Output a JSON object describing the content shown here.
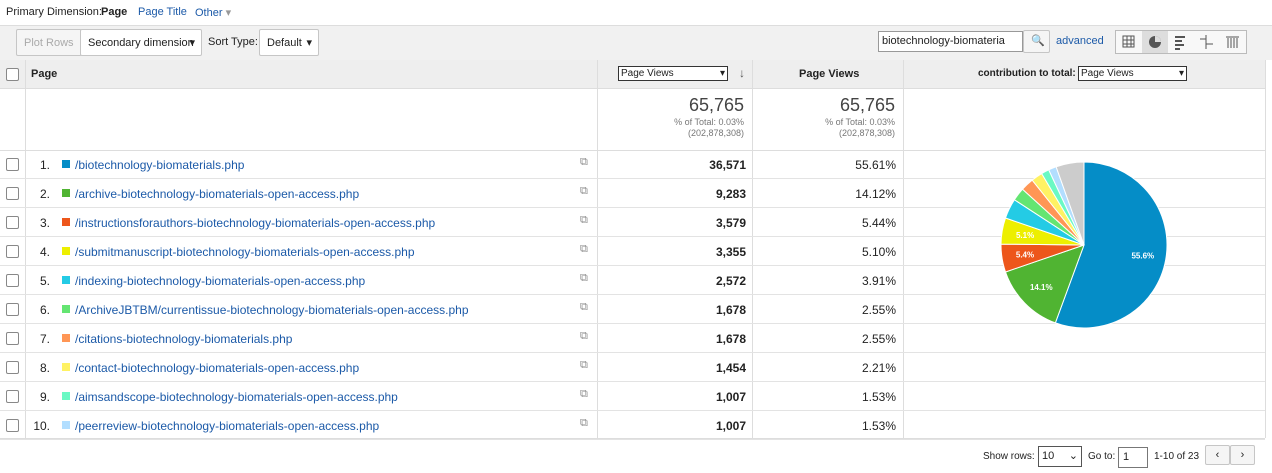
{
  "primary_dimension": {
    "label": "Primary Dimension:",
    "options": [
      "Page",
      "Page Title",
      "Other"
    ]
  },
  "toolbar": {
    "plot_rows": "Plot Rows",
    "secondary": "Secondary dimension",
    "sort_label": "Sort Type:",
    "sort_value": "Default",
    "search": "biotechnology-biomateria",
    "advanced": "advanced"
  },
  "table": {
    "headers": {
      "page": "Page",
      "metric_select": "Page Views",
      "metric": "Page Views",
      "contribution_label": "contribution to total:",
      "contribution_select": "Page Views"
    },
    "totals": [
      {
        "value": "65,765",
        "percent": "% of Total: 0.03%",
        "total": "(202,878,308)"
      },
      {
        "value": "65,765",
        "percent": "% of Total: 0.03%",
        "total": "(202,878,308)"
      }
    ],
    "rows": [
      {
        "rank": "1.",
        "page": "/biotechnology-biomaterials.php",
        "views": "36,571",
        "contribution": "55.61%"
      },
      {
        "rank": "2.",
        "page": "/archive-biotechnology-biomaterials-open-access.php",
        "views": "9,283",
        "contribution": "14.12%"
      },
      {
        "rank": "3.",
        "page": "/instructionsforauthors-biotechnology-biomaterials-open-access.php",
        "views": "3,579",
        "contribution": "5.44%"
      },
      {
        "rank": "4.",
        "page": "/submitmanuscript-biotechnology-biomaterials-open-access.php",
        "views": "3,355",
        "contribution": "5.10%"
      },
      {
        "rank": "5.",
        "page": "/indexing-biotechnology-biomaterials-open-access.php",
        "views": "2,572",
        "contribution": "3.91%"
      },
      {
        "rank": "6.",
        "page": "/ArchiveJBTBM/currentissue-biotechnology-biomaterials-open-access.php",
        "views": "1,678",
        "contribution": "2.55%"
      },
      {
        "rank": "7.",
        "page": "/citations-biotechnology-biomaterials.php",
        "views": "1,678",
        "contribution": "2.55%"
      },
      {
        "rank": "8.",
        "page": "/contact-biotechnology-biomaterials-open-access.php",
        "views": "1,454",
        "contribution": "2.21%"
      },
      {
        "rank": "9.",
        "page": "/aimsandscope-biotechnology-biomaterials-open-access.php",
        "views": "1,007",
        "contribution": "1.53%"
      },
      {
        "rank": "10.",
        "page": "/peerreview-biotechnology-biomaterials-open-access.php",
        "views": "1,007",
        "contribution": "1.53%"
      }
    ]
  },
  "pie": {
    "type": "pie",
    "values": [
      55.61,
      14.12,
      5.44,
      5.1,
      3.91,
      2.55,
      2.55,
      2.21,
      1.53,
      1.53,
      5.45
    ],
    "colors": [
      "#058dc7",
      "#50b432",
      "#ed561b",
      "#edef00",
      "#24cbe5",
      "#64e572",
      "#ff9655",
      "#fff263",
      "#6af9c4",
      "#b2deff",
      "#cccccc"
    ],
    "labels": [
      "55.6%",
      "14.1%",
      "5.4%",
      "5.1%",
      null,
      null,
      null,
      null,
      null,
      null,
      null
    ]
  },
  "footer": {
    "show_rows": "Show rows:",
    "rows_value": "10",
    "goto": "Go to:",
    "goto_value": "1",
    "range": "1-10 of 23"
  }
}
